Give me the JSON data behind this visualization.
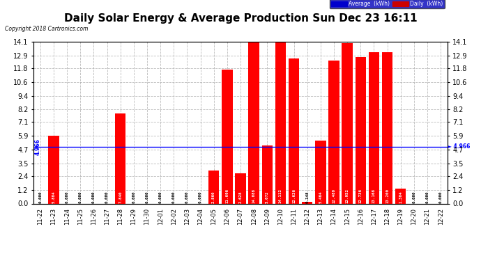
{
  "title": "Daily Solar Energy & Average Production Sun Dec 23 16:11",
  "copyright": "Copyright 2018 Cartronics.com",
  "categories": [
    "11-22",
    "11-23",
    "11-24",
    "11-25",
    "11-26",
    "11-27",
    "11-28",
    "11-29",
    "11-30",
    "12-01",
    "12-02",
    "12-03",
    "12-04",
    "12-05",
    "12-06",
    "12-07",
    "12-08",
    "12-09",
    "12-10",
    "12-11",
    "12-12",
    "12-13",
    "12-14",
    "12-15",
    "12-16",
    "12-17",
    "12-18",
    "12-19",
    "12-20",
    "12-21",
    "12-22"
  ],
  "values": [
    0.0,
    5.884,
    0.0,
    0.0,
    0.0,
    0.0,
    7.84,
    0.0,
    0.0,
    0.0,
    0.0,
    0.0,
    0.0,
    2.86,
    11.696,
    2.628,
    14.088,
    5.072,
    14.112,
    12.636,
    0.148,
    5.464,
    12.48,
    13.952,
    12.736,
    13.168,
    13.2,
    1.304,
    0.0,
    0.0,
    0.0
  ],
  "average_line": 4.966,
  "ylim": [
    0.0,
    14.1
  ],
  "yticks": [
    0.0,
    1.2,
    2.4,
    3.5,
    4.7,
    5.9,
    7.1,
    8.2,
    9.4,
    10.6,
    11.8,
    12.9,
    14.1
  ],
  "bar_color": "#FF0000",
  "average_color": "#0000FF",
  "background_color": "#FFFFFF",
  "plot_bg_color": "#FFFFFF",
  "grid_color": "#AAAAAA",
  "title_fontsize": 11,
  "legend_avg_color": "#0000CC",
  "legend_daily_color": "#CC0000",
  "value_label_color_white": "#FFFFFF",
  "value_label_color_black": "#000000"
}
